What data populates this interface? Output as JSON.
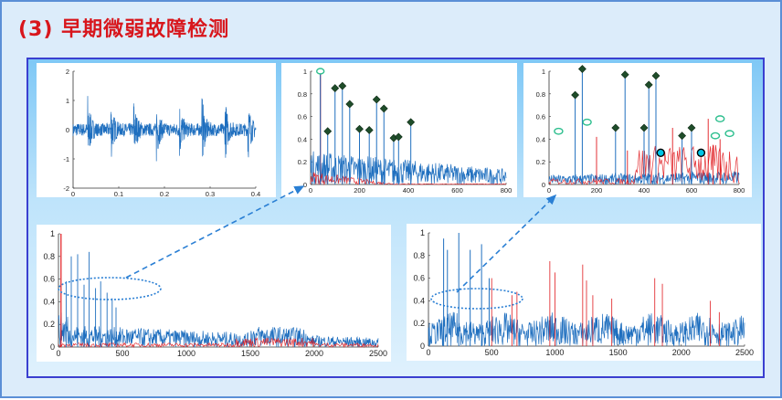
{
  "title": "(3)  早期微弱故障检测",
  "colors": {
    "title": "#d8161c",
    "signal": "#1f6fbf",
    "fault": "#e0191e",
    "arrow": "#2a7fd4",
    "marker": "#1f4d2a",
    "circle": "#2fbf8f",
    "dot": "#00c5e6"
  },
  "chart_data": [
    {
      "type": "line",
      "title": "",
      "xlabel": "",
      "ylabel": "",
      "xlim": [
        0,
        0.4
      ],
      "ylim": [
        -2,
        2
      ],
      "xticks": [
        "0",
        "0.1",
        "0.2",
        "0.3",
        "0.4"
      ],
      "yticks": [
        "2",
        "1",
        "0",
        "-1",
        "-2"
      ],
      "grid": false,
      "series": [
        {
          "values_note_impulses": [
            0.032,
            0.082,
            0.132,
            0.182,
            0.232,
            0.282,
            0.332,
            0.382
          ]
        }
      ]
    },
    {
      "type": "line",
      "title": "",
      "xlabel": "",
      "ylabel": "",
      "xlim": [
        0,
        800
      ],
      "ylim": [
        0,
        1
      ],
      "xticks": [
        "0",
        "200",
        "400",
        "600",
        "800"
      ],
      "yticks": [
        "1",
        "0.8",
        "0.6",
        "0.4",
        "0.2",
        "0"
      ],
      "peaks": [
        [
          40,
          0.98
        ],
        [
          100,
          0.82
        ],
        [
          130,
          0.84
        ],
        [
          160,
          0.68
        ],
        [
          200,
          0.46
        ],
        [
          240,
          0.45
        ],
        [
          270,
          0.72
        ],
        [
          300,
          0.64
        ],
        [
          340,
          0.38
        ],
        [
          360,
          0.39
        ],
        [
          410,
          0.52
        ],
        [
          70,
          0.44
        ]
      ]
    },
    {
      "type": "line",
      "title": "",
      "xlabel": "",
      "ylabel": "",
      "xlim": [
        0,
        800
      ],
      "ylim": [
        0,
        1
      ],
      "xticks": [
        "0",
        "200",
        "400",
        "600",
        "800"
      ],
      "yticks": [
        "1",
        "0.8",
        "0.6",
        "0.4",
        "0.2",
        "0"
      ],
      "peaks": [
        [
          110,
          0.77
        ],
        [
          140,
          1.0
        ],
        [
          280,
          0.48
        ],
        [
          320,
          0.95
        ],
        [
          400,
          0.48
        ],
        [
          420,
          0.86
        ],
        [
          450,
          0.94
        ],
        [
          560,
          0.41
        ],
        [
          600,
          0.48
        ]
      ]
    },
    {
      "type": "line",
      "title": "",
      "xlabel": "",
      "ylabel": "",
      "xlim": [
        0,
        2500
      ],
      "ylim": [
        0,
        1
      ],
      "xticks": [
        "0",
        "500",
        "1000",
        "1500",
        "2000",
        "2500"
      ],
      "yticks": [
        "1",
        "0.8",
        "0.6",
        "0.4",
        "0.2",
        "0"
      ]
    },
    {
      "type": "line",
      "title": "",
      "xlabel": "",
      "ylabel": "",
      "xlim": [
        0,
        2500
      ],
      "ylim": [
        0,
        1
      ],
      "xticks": [
        "0",
        "500",
        "1000",
        "1500",
        "2000",
        "2500"
      ],
      "yticks": [
        "1",
        "0.8",
        "0.6",
        "0.4",
        "0.2",
        "0"
      ]
    }
  ]
}
